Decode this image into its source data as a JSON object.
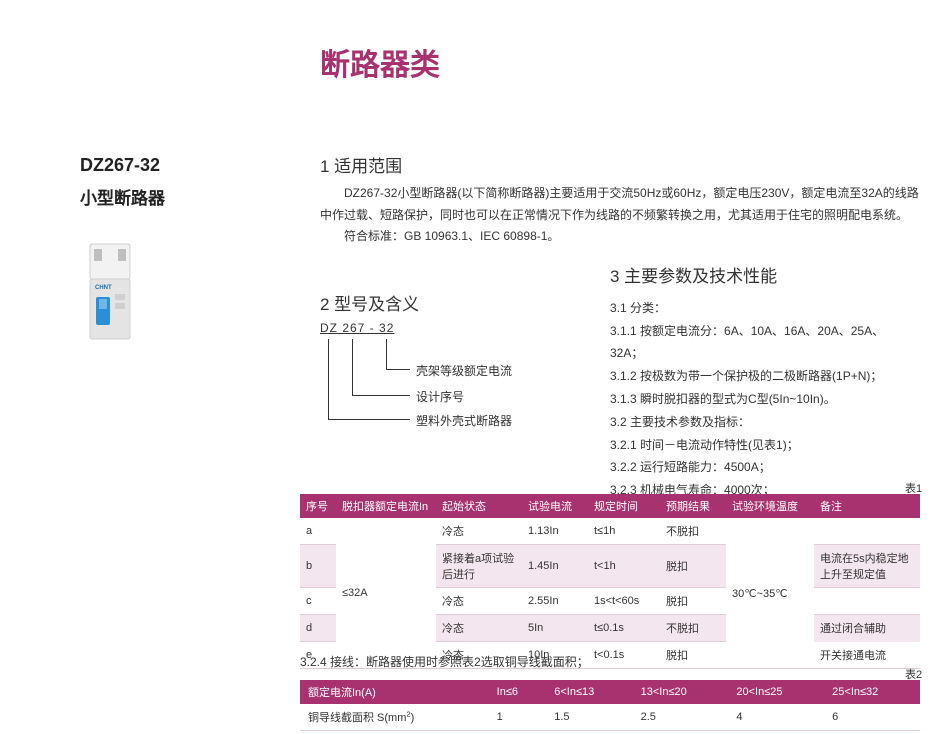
{
  "page": {
    "title": "断路器类",
    "title_color": "#a8316f",
    "background": "#ffffff"
  },
  "sidebar": {
    "product_code": "DZ267-32",
    "product_name": "小型断路器",
    "image": {
      "case_color": "#e4e4e4",
      "case_top_color": "#f2f2f2",
      "switch_color": "#2a8fd6",
      "brand_text": "CHNT",
      "brand_color": "#1a6fb0"
    }
  },
  "sections": {
    "scope": {
      "heading": "1 适用范围",
      "body": "DZ267-32小型断路器(以下简称断路器)主要适用于交流50Hz或60Hz，额定电压230V，额定电流至32A的线路中作过载、短路保护，同时也可以在正常情况下作为线路的不频繁转换之用，尤其适用于住宅的照明配电系统。",
      "standards": "符合标准：GB 10963.1、IEC 60898-1。"
    },
    "model": {
      "heading": "2 型号及含义",
      "code": "DZ 267 - 32",
      "labels": {
        "l1": "壳架等级额定电流",
        "l2": "设计序号",
        "l3": "塑料外壳式断路器"
      }
    },
    "params": {
      "heading": "3 主要参数及技术性能",
      "lines": [
        "3.1 分类：",
        "3.1.1 按额定电流分：6A、10A、16A、20A、25A、32A；",
        "3.1.2 按极数为带一个保护极的二极断路器(1P+N)；",
        "3.1.3 瞬时脱扣器的型式为C型(5In~10In)。",
        "3.2 主要技术参数及指标：",
        "3.2.1 时间－电流动作特性(见表1)；",
        "3.2.2 运行短路能力：4500A；",
        "3.2.3 机械电气寿命：4000次；"
      ]
    }
  },
  "table1": {
    "label": "表1",
    "header_bg": "#a8316f",
    "row_alt_bg": "#f4e6ee",
    "border_color": "#e0cbd8",
    "columns": [
      "序号",
      "脱扣器额定电流In",
      "起始状态",
      "试验电流",
      "规定时间",
      "预期结果",
      "试验环境温度",
      "备注"
    ],
    "col_widths": [
      "36px",
      "100px",
      "86px",
      "66px",
      "72px",
      "66px",
      "88px",
      "auto"
    ],
    "shared": {
      "rated_current": "≤32A",
      "ambient_temp": "30℃~35℃"
    },
    "rows": [
      {
        "seq": "a",
        "state": "冷态",
        "test_current": "1.13In",
        "time": "t≤1h",
        "result": "不脱扣",
        "note": ""
      },
      {
        "seq": "b",
        "state": "紧接着a项试验后进行",
        "test_current": "1.45In",
        "time": "t<1h",
        "result": "脱扣",
        "note": "电流在5s内稳定地上升至规定值"
      },
      {
        "seq": "c",
        "state": "冷态",
        "test_current": "2.55In",
        "time": "1s<t<60s",
        "result": "脱扣",
        "note": ""
      },
      {
        "seq": "d",
        "state": "冷态",
        "test_current": "5In",
        "time": "t≤0.1s",
        "result": "不脱扣",
        "note": "通过闭合辅助"
      },
      {
        "seq": "e",
        "state": "冷态",
        "test_current": "10In",
        "time": "t<0.1s",
        "result": "脱扣",
        "note": "开关接通电流"
      }
    ]
  },
  "table2": {
    "label": "表2",
    "note": "3.2.4 接线：断路器使用时参照表2选取铜导线截面积；",
    "columns": [
      "额定电流In(A)",
      "In≤6",
      "6<In≤13",
      "13<In≤20",
      "20<In≤25",
      "25<In≤32"
    ],
    "row_label": "铜导线截面积 S(mm²)",
    "values": [
      "1",
      "1.5",
      "2.5",
      "4",
      "6"
    ]
  }
}
